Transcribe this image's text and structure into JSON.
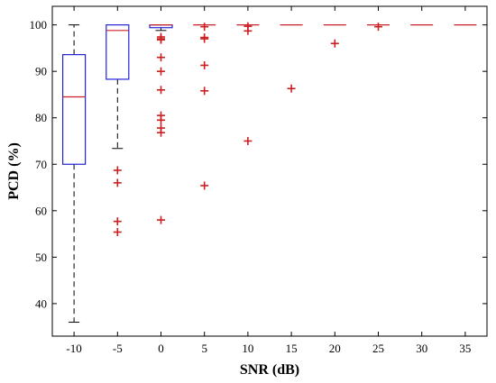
{
  "chart_data": {
    "type": "boxplot",
    "title": "",
    "xlabel": "SNR (dB)",
    "ylabel": "PCD (%)",
    "ylim": [
      33,
      104
    ],
    "yticks": [
      40,
      50,
      60,
      70,
      80,
      90,
      100
    ],
    "grid": false,
    "categories": [
      "-10",
      "-5",
      "0",
      "5",
      "10",
      "15",
      "20",
      "25",
      "30",
      "35"
    ],
    "boxes": [
      {
        "category": "-10",
        "whisker_low": 36,
        "q1": 70,
        "median": 84.5,
        "q3": 93.6,
        "whisker_high": 100,
        "outliers": []
      },
      {
        "category": "-5",
        "whisker_low": 73.4,
        "q1": 88.3,
        "median": 98.8,
        "q3": 100,
        "whisker_high": 100,
        "outliers": [
          68.7,
          66,
          57.7,
          55.4
        ]
      },
      {
        "category": "0",
        "whisker_low": 98.8,
        "q1": 99.4,
        "median": 100,
        "q3": 100,
        "whisker_high": 100,
        "outliers": [
          97.4,
          97,
          96.8,
          93,
          90,
          86,
          80.5,
          79.5,
          77.8,
          76.8,
          58
        ]
      },
      {
        "category": "5",
        "whisker_low": 100,
        "q1": 100,
        "median": 100,
        "q3": 100,
        "whisker_high": 100,
        "outliers": [
          99.6,
          97.3,
          97,
          91.3,
          85.8,
          65.4
        ]
      },
      {
        "category": "10",
        "whisker_low": 100,
        "q1": 100,
        "median": 100,
        "q3": 100,
        "whisker_high": 100,
        "outliers": [
          99.7,
          98.7,
          75
        ]
      },
      {
        "category": "15",
        "whisker_low": 100,
        "q1": 100,
        "median": 100,
        "q3": 100,
        "whisker_high": 100,
        "outliers": [
          86.3
        ]
      },
      {
        "category": "20",
        "whisker_low": 100,
        "q1": 100,
        "median": 100,
        "q3": 100,
        "whisker_high": 100,
        "outliers": [
          96
        ]
      },
      {
        "category": "25",
        "whisker_low": 100,
        "q1": 100,
        "median": 100,
        "q3": 100,
        "whisker_high": 100,
        "outliers": [
          99.6
        ]
      },
      {
        "category": "30",
        "whisker_low": 100,
        "q1": 100,
        "median": 100,
        "q3": 100,
        "whisker_high": 100,
        "outliers": []
      },
      {
        "category": "35",
        "whisker_low": 100,
        "q1": 100,
        "median": 100,
        "q3": 100,
        "whisker_high": 100,
        "outliers": []
      }
    ],
    "colors": {
      "box": "#2323d6",
      "median": "#c8202a",
      "outlier": "#cc1f1f",
      "whisker": "#000000"
    }
  }
}
